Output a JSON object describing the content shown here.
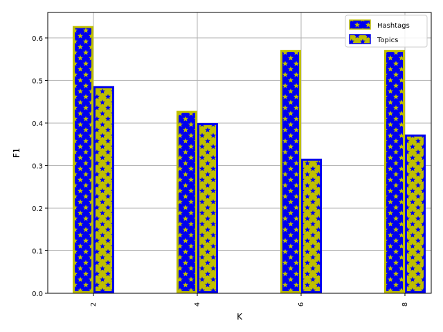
{
  "chart_data": {
    "type": "bar",
    "categories": [
      "2",
      "4",
      "6",
      "8"
    ],
    "series": [
      {
        "name": "Hashtags",
        "values": [
          0.628,
          0.429,
          0.572,
          0.572
        ],
        "fill": "#0000ee",
        "edge": "#bfbf00",
        "hatch": "*"
      },
      {
        "name": "Topics",
        "values": [
          0.487,
          0.4,
          0.316,
          0.373
        ],
        "fill": "#bfbf00",
        "edge": "#0000ee",
        "hatch": "*"
      }
    ],
    "xlabel": "K",
    "ylabel": "F1",
    "ylim": [
      0,
      0.66
    ],
    "yticks": [
      "0.0",
      "0.1",
      "0.2",
      "0.3",
      "0.4",
      "0.5",
      "0.6"
    ],
    "grid": true,
    "legend_position": "top-right",
    "xtick_rotation": "vertical"
  }
}
